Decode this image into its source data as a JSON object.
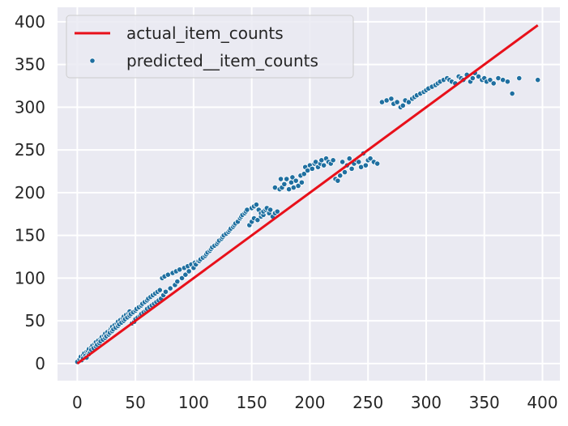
{
  "chart_data": {
    "type": "scatter",
    "xlim": [
      -17,
      415
    ],
    "ylim": [
      -20,
      417
    ],
    "x_ticks": [
      0,
      50,
      100,
      150,
      200,
      250,
      300,
      350,
      400
    ],
    "y_ticks": [
      0,
      50,
      100,
      150,
      200,
      250,
      300,
      350,
      400
    ],
    "grid": true,
    "legend_position": "top-left",
    "colors": {
      "background": "#eaeaf2",
      "grid": "#ffffff",
      "line": "#e8101a",
      "points": "#1f6fa0"
    },
    "series": [
      {
        "name": "actual_item_counts",
        "kind": "line",
        "x": [
          0,
          396
        ],
        "y": [
          0,
          396
        ]
      },
      {
        "name": "predicted__item_counts",
        "kind": "scatter",
        "x": [
          0,
          2,
          3,
          4,
          5,
          5,
          6,
          7,
          8,
          8,
          9,
          10,
          10,
          11,
          12,
          12,
          13,
          14,
          15,
          16,
          16,
          17,
          18,
          19,
          20,
          20,
          21,
          22,
          23,
          24,
          24,
          25,
          26,
          27,
          28,
          28,
          29,
          30,
          30,
          31,
          32,
          33,
          34,
          35,
          35,
          36,
          37,
          38,
          39,
          40,
          40,
          41,
          42,
          43,
          44,
          45,
          45,
          46,
          47,
          48,
          49,
          50,
          50,
          51,
          52,
          53,
          54,
          55,
          55,
          56,
          57,
          58,
          59,
          60,
          60,
          61,
          62,
          63,
          64,
          65,
          66,
          67,
          68,
          69,
          70,
          71,
          72,
          73,
          74,
          75,
          76,
          78,
          80,
          82,
          84,
          85,
          86,
          88,
          90,
          92,
          93,
          95,
          96,
          98,
          100,
          101,
          102,
          104,
          105,
          106,
          108,
          110,
          111,
          112,
          114,
          115,
          116,
          118,
          120,
          121,
          122,
          124,
          125,
          126,
          128,
          130,
          131,
          132,
          134,
          135,
          136,
          138,
          140,
          141,
          142,
          144,
          145,
          146,
          148,
          150,
          150,
          152,
          152,
          154,
          155,
          156,
          158,
          158,
          160,
          160,
          162,
          163,
          165,
          166,
          168,
          170,
          170,
          172,
          174,
          175,
          176,
          178,
          180,
          182,
          184,
          185,
          186,
          188,
          190,
          192,
          193,
          195,
          196,
          198,
          200,
          202,
          204,
          205,
          207,
          209,
          210,
          212,
          214,
          216,
          218,
          220,
          222,
          224,
          226,
          228,
          230,
          232,
          234,
          236,
          238,
          240,
          242,
          244,
          246,
          248,
          250,
          252,
          255,
          258,
          262,
          266,
          270,
          272,
          275,
          278,
          280,
          282,
          285,
          288,
          290,
          292,
          295,
          298,
          300,
          302,
          305,
          308,
          310,
          312,
          315,
          318,
          320,
          322,
          325,
          328,
          330,
          332,
          335,
          338,
          340,
          342,
          345,
          348,
          350,
          352,
          355,
          358,
          362,
          366,
          370,
          374,
          380,
          396
        ],
        "y": [
          2,
          5,
          8,
          4,
          10,
          6,
          12,
          9,
          14,
          7,
          15,
          11,
          17,
          13,
          19,
          16,
          21,
          18,
          23,
          20,
          25,
          22,
          27,
          24,
          29,
          26,
          31,
          28,
          33,
          30,
          35,
          32,
          37,
          34,
          39,
          36,
          41,
          38,
          43,
          40,
          45,
          42,
          47,
          44,
          49,
          46,
          51,
          48,
          53,
          50,
          55,
          52,
          57,
          54,
          59,
          56,
          61,
          58,
          47,
          60,
          49,
          62,
          52,
          64,
          54,
          66,
          56,
          68,
          58,
          70,
          60,
          72,
          62,
          74,
          64,
          76,
          66,
          78,
          68,
          80,
          70,
          82,
          72,
          84,
          74,
          86,
          76,
          100,
          80,
          102,
          84,
          104,
          88,
          106,
          92,
          108,
          96,
          110,
          100,
          112,
          104,
          114,
          108,
          116,
          112,
          118,
          116,
          120,
          120,
          122,
          124,
          126,
          128,
          130,
          132,
          134,
          136,
          138,
          140,
          142,
          144,
          146,
          148,
          150,
          152,
          154,
          156,
          158,
          160,
          162,
          164,
          166,
          170,
          172,
          174,
          176,
          178,
          180,
          162,
          182,
          166,
          184,
          170,
          186,
          168,
          180,
          172,
          176,
          174,
          178,
          180,
          182,
          176,
          180,
          172,
          176,
          206,
          178,
          204,
          216,
          206,
          210,
          216,
          204,
          212,
          218,
          206,
          214,
          208,
          220,
          212,
          222,
          230,
          226,
          232,
          228,
          234,
          236,
          230,
          234,
          238,
          232,
          240,
          236,
          234,
          238,
          216,
          214,
          220,
          236,
          224,
          232,
          240,
          228,
          234,
          238,
          236,
          230,
          246,
          232,
          238,
          240,
          236,
          234,
          306,
          308,
          310,
          304,
          306,
          300,
          302,
          308,
          306,
          310,
          312,
          314,
          316,
          318,
          320,
          322,
          324,
          326,
          328,
          330,
          332,
          334,
          332,
          330,
          328,
          336,
          334,
          332,
          338,
          330,
          334,
          340,
          336,
          332,
          334,
          330,
          332,
          328,
          334,
          332,
          330,
          316,
          334,
          332
        ]
      }
    ]
  }
}
